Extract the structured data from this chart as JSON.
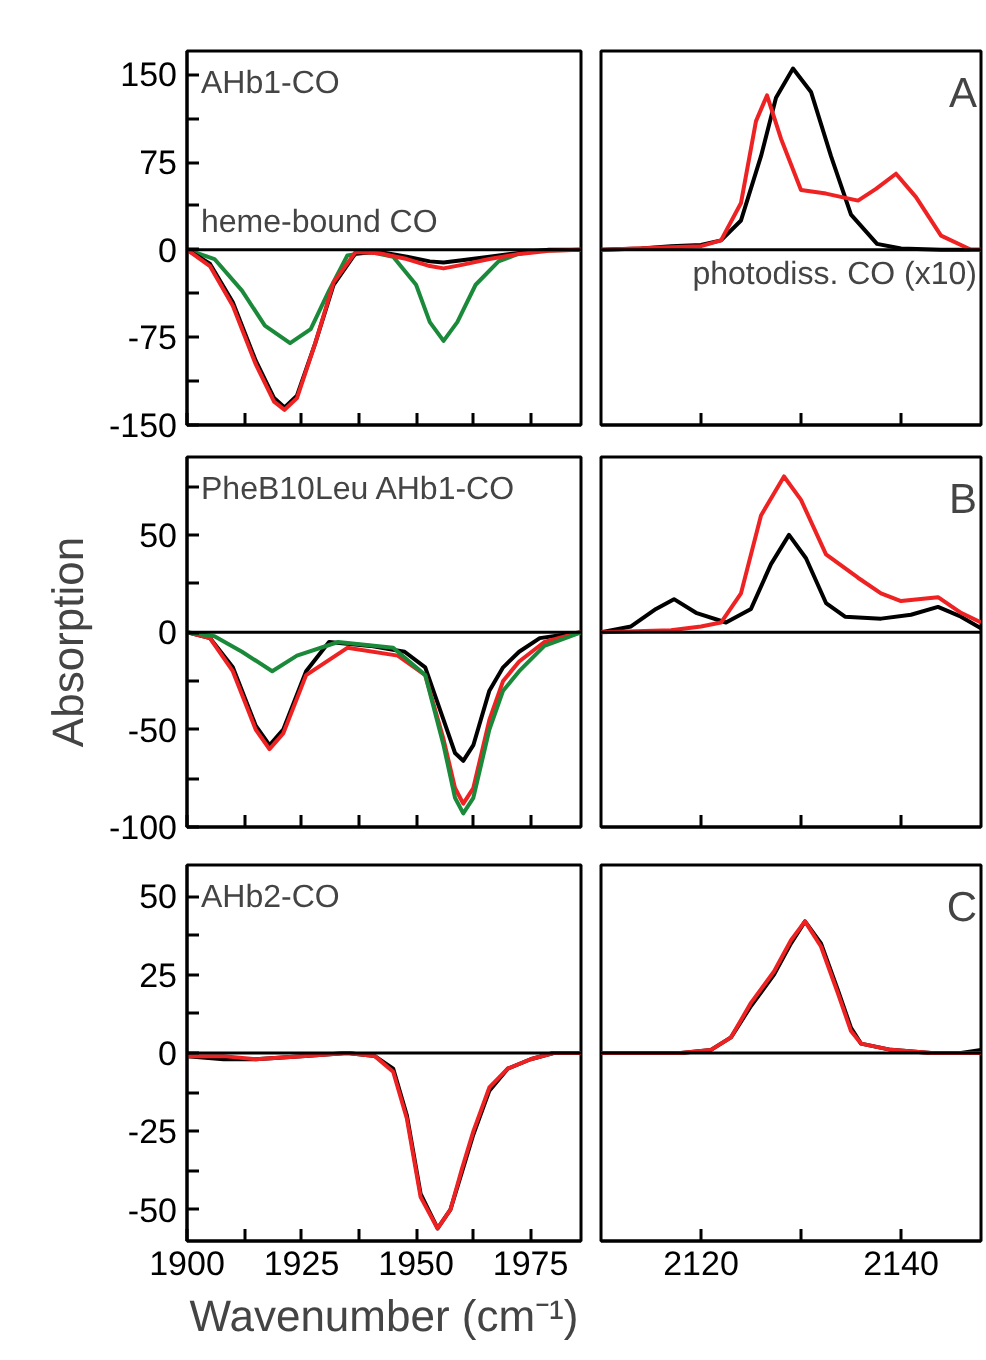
{
  "chart_data": [
    {
      "type": "line",
      "annotations": [
        "AHb1-CO",
        "heme-bound CO"
      ],
      "xlim": [
        1900,
        1986
      ],
      "ylim": [
        -150,
        170
      ],
      "tick_labels": "y",
      "xticks": [
        {
          "value": 1900,
          "label": null
        },
        {
          "value": 1912.5,
          "label": null
        },
        {
          "value": 1925,
          "label": null
        },
        {
          "value": 1937.5,
          "label": null
        },
        {
          "value": 1950,
          "label": null
        },
        {
          "value": 1962.5,
          "label": null
        },
        {
          "value": 1975,
          "label": null
        }
      ],
      "yticks": [
        -150,
        {
          "value": -112.5,
          "label": null
        },
        -75,
        {
          "value": -37.5,
          "label": null
        },
        0,
        {
          "value": 37.5,
          "label": null
        },
        75,
        {
          "value": 112.5,
          "label": null
        },
        150
      ],
      "ref_lines": [
        {
          "axis": "y",
          "value": 0,
          "color": "#000000"
        }
      ],
      "series": [
        {
          "color": "#1a8a3a",
          "x": [
            1900,
            1906,
            1912,
            1917,
            1922.5,
            1927,
            1931,
            1935,
            1940,
            1945,
            1950,
            1953,
            1956,
            1959,
            1963,
            1968,
            1972,
            1976,
            1986
          ],
          "values": [
            0,
            -8,
            -35,
            -65,
            -80,
            -68,
            -35,
            -5,
            -2,
            -6,
            -30,
            -62,
            -78,
            -62,
            -30,
            -10,
            -4,
            -1,
            0
          ]
        },
        {
          "color": "#000000",
          "x": [
            1900,
            1905,
            1910,
            1915,
            1919,
            1921.3,
            1924,
            1928,
            1932,
            1936.8,
            1942,
            1948,
            1953,
            1956,
            1960,
            1966,
            1972,
            1979,
            1986
          ],
          "values": [
            0,
            -12,
            -45,
            -95,
            -127,
            -135,
            -125,
            -80,
            -30,
            -3,
            -2,
            -6,
            -10,
            -11,
            -9,
            -6,
            -3,
            0,
            0
          ]
        },
        {
          "color": "#ee2222",
          "x": [
            1900,
            1905,
            1910,
            1915,
            1919,
            1921.3,
            1924,
            1928,
            1932,
            1936.8,
            1942,
            1948,
            1953,
            1956,
            1960,
            1966,
            1972,
            1979,
            1986
          ],
          "values": [
            0,
            -14,
            -48,
            -98,
            -130,
            -137,
            -127,
            -80,
            -28,
            -2,
            -3,
            -8,
            -14,
            -16,
            -13,
            -8,
            -4,
            -1,
            0
          ]
        }
      ]
    },
    {
      "type": "line",
      "annotations": [
        "A",
        "photodiss. CO (x10)"
      ],
      "xlim": [
        2110,
        2148
      ],
      "ylim": [
        -150,
        170
      ],
      "tick_labels": false,
      "xticks": [
        {
          "value": 2120,
          "label": null
        },
        {
          "value": 2130,
          "label": null
        },
        {
          "value": 2140,
          "label": null
        }
      ],
      "ref_lines": [
        {
          "axis": "y",
          "value": 0,
          "color": "#000000"
        }
      ],
      "series": [
        {
          "color": "#000000",
          "x": [
            2110,
            2114,
            2117,
            2120,
            2122,
            2124,
            2126,
            2127.5,
            2129.2,
            2131,
            2133,
            2135,
            2137.6,
            2140,
            2144,
            2148
          ],
          "values": [
            0,
            1,
            3,
            4,
            8,
            25,
            80,
            130,
            155,
            135,
            80,
            30,
            5,
            1,
            0,
            0
          ]
        },
        {
          "color": "#ee2222",
          "x": [
            2110,
            2117,
            2120,
            2122,
            2124,
            2125.5,
            2126.6,
            2128,
            2130,
            2132.5,
            2135.7,
            2137.5,
            2139.5,
            2141.5,
            2144,
            2147,
            2148
          ],
          "values": [
            0,
            2,
            3,
            8,
            40,
            110,
            132,
            95,
            51,
            48,
            42,
            52,
            65,
            45,
            12,
            0,
            0
          ]
        }
      ]
    },
    {
      "type": "line",
      "annotations": [
        "PheB10Leu AHb1-CO"
      ],
      "xlim": [
        1900,
        1986
      ],
      "ylim": [
        -100,
        90
      ],
      "tick_labels": "y",
      "ylabel": "Absorption",
      "xticks": [
        {
          "value": 1900,
          "label": null
        },
        {
          "value": 1912.5,
          "label": null
        },
        {
          "value": 1925,
          "label": null
        },
        {
          "value": 1937.5,
          "label": null
        },
        {
          "value": 1950,
          "label": null
        },
        {
          "value": 1962.5,
          "label": null
        },
        {
          "value": 1975,
          "label": null
        }
      ],
      "yticks": [
        -100,
        {
          "value": -75,
          "label": null
        },
        -50,
        {
          "value": -25,
          "label": null
        },
        0,
        {
          "value": 25,
          "label": null
        },
        50,
        {
          "value": 75,
          "label": null
        }
      ],
      "ref_lines": [
        {
          "axis": "y",
          "value": 0,
          "color": "#000000"
        }
      ],
      "series": [
        {
          "color": "#000000",
          "x": [
            1900,
            1905,
            1910,
            1915,
            1918,
            1921,
            1926,
            1931,
            1940,
            1947.5,
            1952,
            1956,
            1958.5,
            1960.3,
            1962.5,
            1966,
            1969,
            1972.5,
            1977,
            1986
          ],
          "values": [
            0,
            -3,
            -18,
            -48,
            -58,
            -50,
            -20,
            -5,
            -7,
            -10,
            -18,
            -45,
            -62,
            -66,
            -58,
            -30,
            -18,
            -10,
            -3,
            0
          ]
        },
        {
          "color": "#ee2222",
          "x": [
            1900,
            1905,
            1910,
            1915,
            1918,
            1921,
            1926,
            1935,
            1946,
            1952,
            1956,
            1958.5,
            1960.3,
            1962.5,
            1966,
            1969,
            1972.5,
            1978,
            1986
          ],
          "values": [
            0,
            -3,
            -20,
            -50,
            -60,
            -52,
            -22,
            -8,
            -12,
            -22,
            -55,
            -80,
            -88,
            -80,
            -45,
            -25,
            -15,
            -5,
            0
          ]
        },
        {
          "color": "#1a8a3a",
          "x": [
            1900,
            1906,
            1912,
            1918.6,
            1924,
            1933,
            1945,
            1952,
            1956,
            1958.5,
            1960.3,
            1962.5,
            1966,
            1969,
            1972.5,
            1978,
            1986
          ],
          "values": [
            0,
            -2,
            -10,
            -20,
            -12,
            -5,
            -8,
            -22,
            -58,
            -85,
            -93,
            -85,
            -50,
            -30,
            -20,
            -7,
            0
          ]
        }
      ]
    },
    {
      "type": "line",
      "annotations": [
        "B"
      ],
      "xlim": [
        2110,
        2148
      ],
      "ylim": [
        -100,
        90
      ],
      "tick_labels": false,
      "xticks": [
        {
          "value": 2120,
          "label": null
        },
        {
          "value": 2130,
          "label": null
        },
        {
          "value": 2140,
          "label": null
        }
      ],
      "ref_lines": [
        {
          "axis": "y",
          "value": 0,
          "color": "#000000"
        }
      ],
      "series": [
        {
          "color": "#000000",
          "x": [
            2110,
            2113,
            2115.5,
            2117.3,
            2119.5,
            2122.5,
            2125,
            2127,
            2128.8,
            2130.5,
            2132.5,
            2134.4,
            2138,
            2141,
            2143.7,
            2146,
            2148
          ],
          "values": [
            0,
            3,
            12,
            17,
            10,
            5,
            12,
            35,
            50,
            38,
            15,
            8,
            7,
            9,
            13,
            8,
            2
          ]
        },
        {
          "color": "#ee2222",
          "x": [
            2110,
            2117,
            2120,
            2122,
            2124,
            2126,
            2128.3,
            2130,
            2132.5,
            2135.7,
            2138,
            2140,
            2143.7,
            2146,
            2148
          ],
          "values": [
            0,
            1,
            3,
            5,
            20,
            60,
            80,
            68,
            40,
            28,
            20,
            16,
            18,
            10,
            5
          ]
        }
      ]
    },
    {
      "type": "line",
      "annotations": [
        "AHb2-CO"
      ],
      "xlim": [
        1900,
        1986
      ],
      "ylim": [
        -60,
        60
      ],
      "xlabel": "Wavenumber (cm⁻¹)",
      "xticks": [
        1900,
        {
          "value": 1912.5,
          "label": null
        },
        1925,
        {
          "value": 1937.5,
          "label": null
        },
        1950,
        {
          "value": 1962.5,
          "label": null
        },
        1975
      ],
      "yticks": [
        -50,
        {
          "value": -37.5,
          "label": null
        },
        -25,
        {
          "value": -12.5,
          "label": null
        },
        0,
        {
          "value": 12.5,
          "label": null
        },
        25,
        {
          "value": 37.5,
          "label": null
        },
        50
      ],
      "ref_lines": [
        {
          "axis": "y",
          "value": 0,
          "color": "#000000"
        }
      ],
      "series": [
        {
          "color": "#000000",
          "x": [
            1900,
            1908,
            1915,
            1925,
            1935,
            1941,
            1945,
            1948,
            1951,
            1954.7,
            1957.5,
            1960,
            1962.5,
            1966,
            1970,
            1975,
            1980,
            1986
          ],
          "values": [
            -1,
            -2,
            -2,
            -1,
            0,
            -1,
            -5,
            -20,
            -45,
            -56,
            -50,
            -38,
            -26,
            -12,
            -5,
            -2,
            0,
            0
          ]
        },
        {
          "color": "#ee2222",
          "x": [
            1900,
            1908,
            1915,
            1925,
            1935,
            1941,
            1945,
            1948,
            1951,
            1954.7,
            1957.5,
            1960,
            1962.5,
            1966,
            1970,
            1975,
            1980,
            1986
          ],
          "values": [
            -1,
            -1,
            -2,
            -1,
            0,
            -1,
            -6,
            -21,
            -46,
            -56,
            -50,
            -37,
            -25,
            -11,
            -5,
            -2,
            0,
            0
          ]
        }
      ]
    },
    {
      "type": "line",
      "annotations": [
        "C"
      ],
      "xlim": [
        2110,
        2148
      ],
      "ylim": [
        -60,
        60
      ],
      "tick_labels": "x",
      "xticks": [
        2120,
        {
          "value": 2130,
          "label": null
        },
        2140
      ],
      "ref_lines": [
        {
          "axis": "y",
          "value": 0,
          "color": "#000000"
        }
      ],
      "series": [
        {
          "color": "#000000",
          "x": [
            2110,
            2118,
            2121,
            2123,
            2125,
            2127.3,
            2129,
            2130.4,
            2132,
            2133.7,
            2135,
            2136,
            2139,
            2143,
            2146,
            2148
          ],
          "values": [
            0,
            0,
            1,
            5,
            15,
            25,
            35,
            42,
            35,
            20,
            8,
            3,
            1,
            0,
            0,
            1
          ]
        },
        {
          "color": "#ee2222",
          "x": [
            2110,
            2118,
            2121,
            2123,
            2125,
            2127.3,
            2129,
            2130.4,
            2132,
            2133.7,
            2135,
            2136,
            2139,
            2143,
            2146,
            2148
          ],
          "values": [
            0,
            0,
            1,
            5,
            16,
            26,
            36,
            42,
            34,
            19,
            7,
            3,
            1,
            0,
            0,
            0
          ]
        }
      ]
    }
  ]
}
